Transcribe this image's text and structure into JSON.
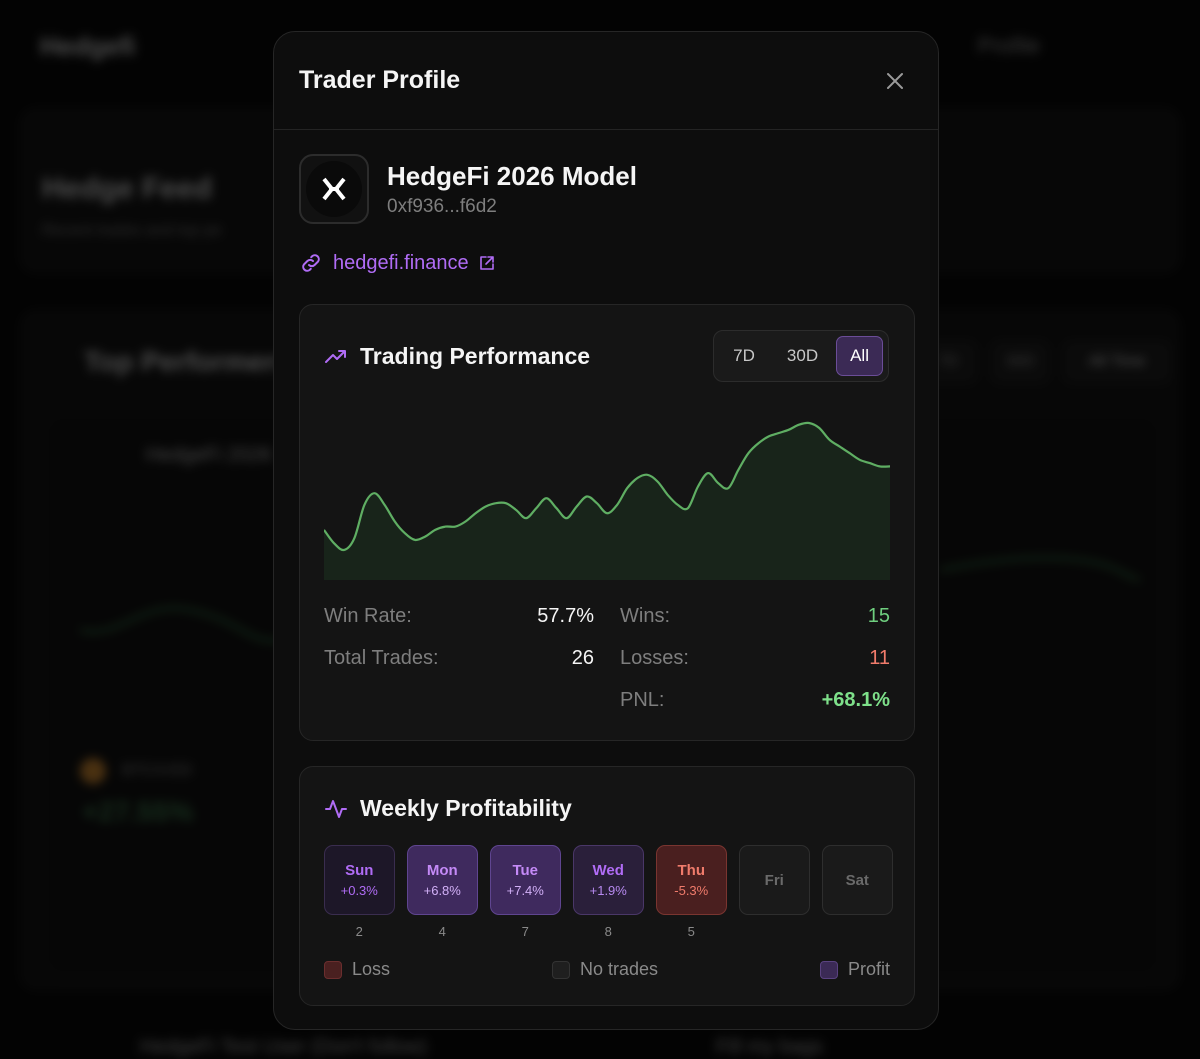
{
  "background": {
    "logo": "Hedgefi",
    "nav_link": "Profile",
    "feed_title": "Hedge Feed",
    "feed_subtitle": "Recent trades and top pe",
    "top_title": "Top Performers",
    "pills": [
      "7D",
      "30D",
      "All Time"
    ],
    "row_name": "HedgeFi 2026",
    "symbol": "BTC/USD",
    "pnl": "+27.55%",
    "footer_left": "HedgeFi Test User (Don't follow)",
    "footer_right": "Fill my bags"
  },
  "modal": {
    "title": "Trader Profile",
    "close_label": "×"
  },
  "profile": {
    "name": "HedgeFi 2026 Model",
    "address": "0xf936...f6d2",
    "website": "hedgefi.finance"
  },
  "performance": {
    "title": "Trading Performance",
    "icon": "trending-up-icon",
    "ranges": [
      "7D",
      "30D",
      "All"
    ],
    "active_range": "All",
    "stats": {
      "win_rate_label": "Win Rate:",
      "win_rate": "57.7%",
      "total_trades_label": "Total Trades:",
      "total_trades": "26",
      "wins_label": "Wins:",
      "wins": "15",
      "losses_label": "Losses:",
      "losses": "11",
      "pnl_label": "PNL:",
      "pnl": "+68.1%"
    }
  },
  "chart_data": {
    "type": "area",
    "title": "",
    "xlabel": "",
    "ylabel": "",
    "ylim": [
      0,
      100
    ],
    "grid": false,
    "x": [
      0,
      1,
      2,
      3,
      4,
      5,
      6,
      7,
      8,
      9,
      10,
      11,
      12,
      13,
      14,
      15,
      16,
      17,
      18,
      19,
      20,
      21,
      22,
      23,
      24,
      25,
      26,
      27,
      28,
      29,
      30,
      31,
      32,
      33,
      34,
      35,
      36,
      37,
      38,
      39,
      40,
      41,
      42,
      43,
      44,
      45,
      46,
      47,
      48,
      49,
      50,
      51,
      52,
      53,
      54,
      55,
      56
    ],
    "values": [
      30,
      22,
      18,
      25,
      45,
      52,
      45,
      35,
      28,
      24,
      26,
      30,
      32,
      32,
      35,
      40,
      44,
      46,
      46,
      42,
      37,
      43,
      49,
      43,
      37,
      44,
      50,
      46,
      40,
      45,
      55,
      61,
      63,
      59,
      51,
      45,
      43,
      56,
      64,
      58,
      55,
      66,
      76,
      82,
      86,
      88,
      90,
      93,
      94,
      91,
      84,
      80,
      76,
      72,
      70,
      68,
      68
    ],
    "color": "#5fae63"
  },
  "weekly": {
    "title": "Weekly Profitability",
    "icon": "activity-icon",
    "days": [
      {
        "name": "Sun",
        "pct": "+0.3%",
        "count": "2",
        "state": "profit-low"
      },
      {
        "name": "Mon",
        "pct": "+6.8%",
        "count": "4",
        "state": "profit-high"
      },
      {
        "name": "Tue",
        "pct": "+7.4%",
        "count": "7",
        "state": "profit-high"
      },
      {
        "name": "Wed",
        "pct": "+1.9%",
        "count": "8",
        "state": "profit-mid"
      },
      {
        "name": "Thu",
        "pct": "-5.3%",
        "count": "5",
        "state": "loss"
      },
      {
        "name": "Fri",
        "pct": "",
        "count": "",
        "state": "none"
      },
      {
        "name": "Sat",
        "pct": "",
        "count": "",
        "state": "none"
      }
    ],
    "legend": {
      "loss": "Loss",
      "none": "No trades",
      "profit": "Profit"
    }
  },
  "colors": {
    "accent": "#b06cf5",
    "profit": "#6fcf7f",
    "loss": "#f07b6b"
  }
}
